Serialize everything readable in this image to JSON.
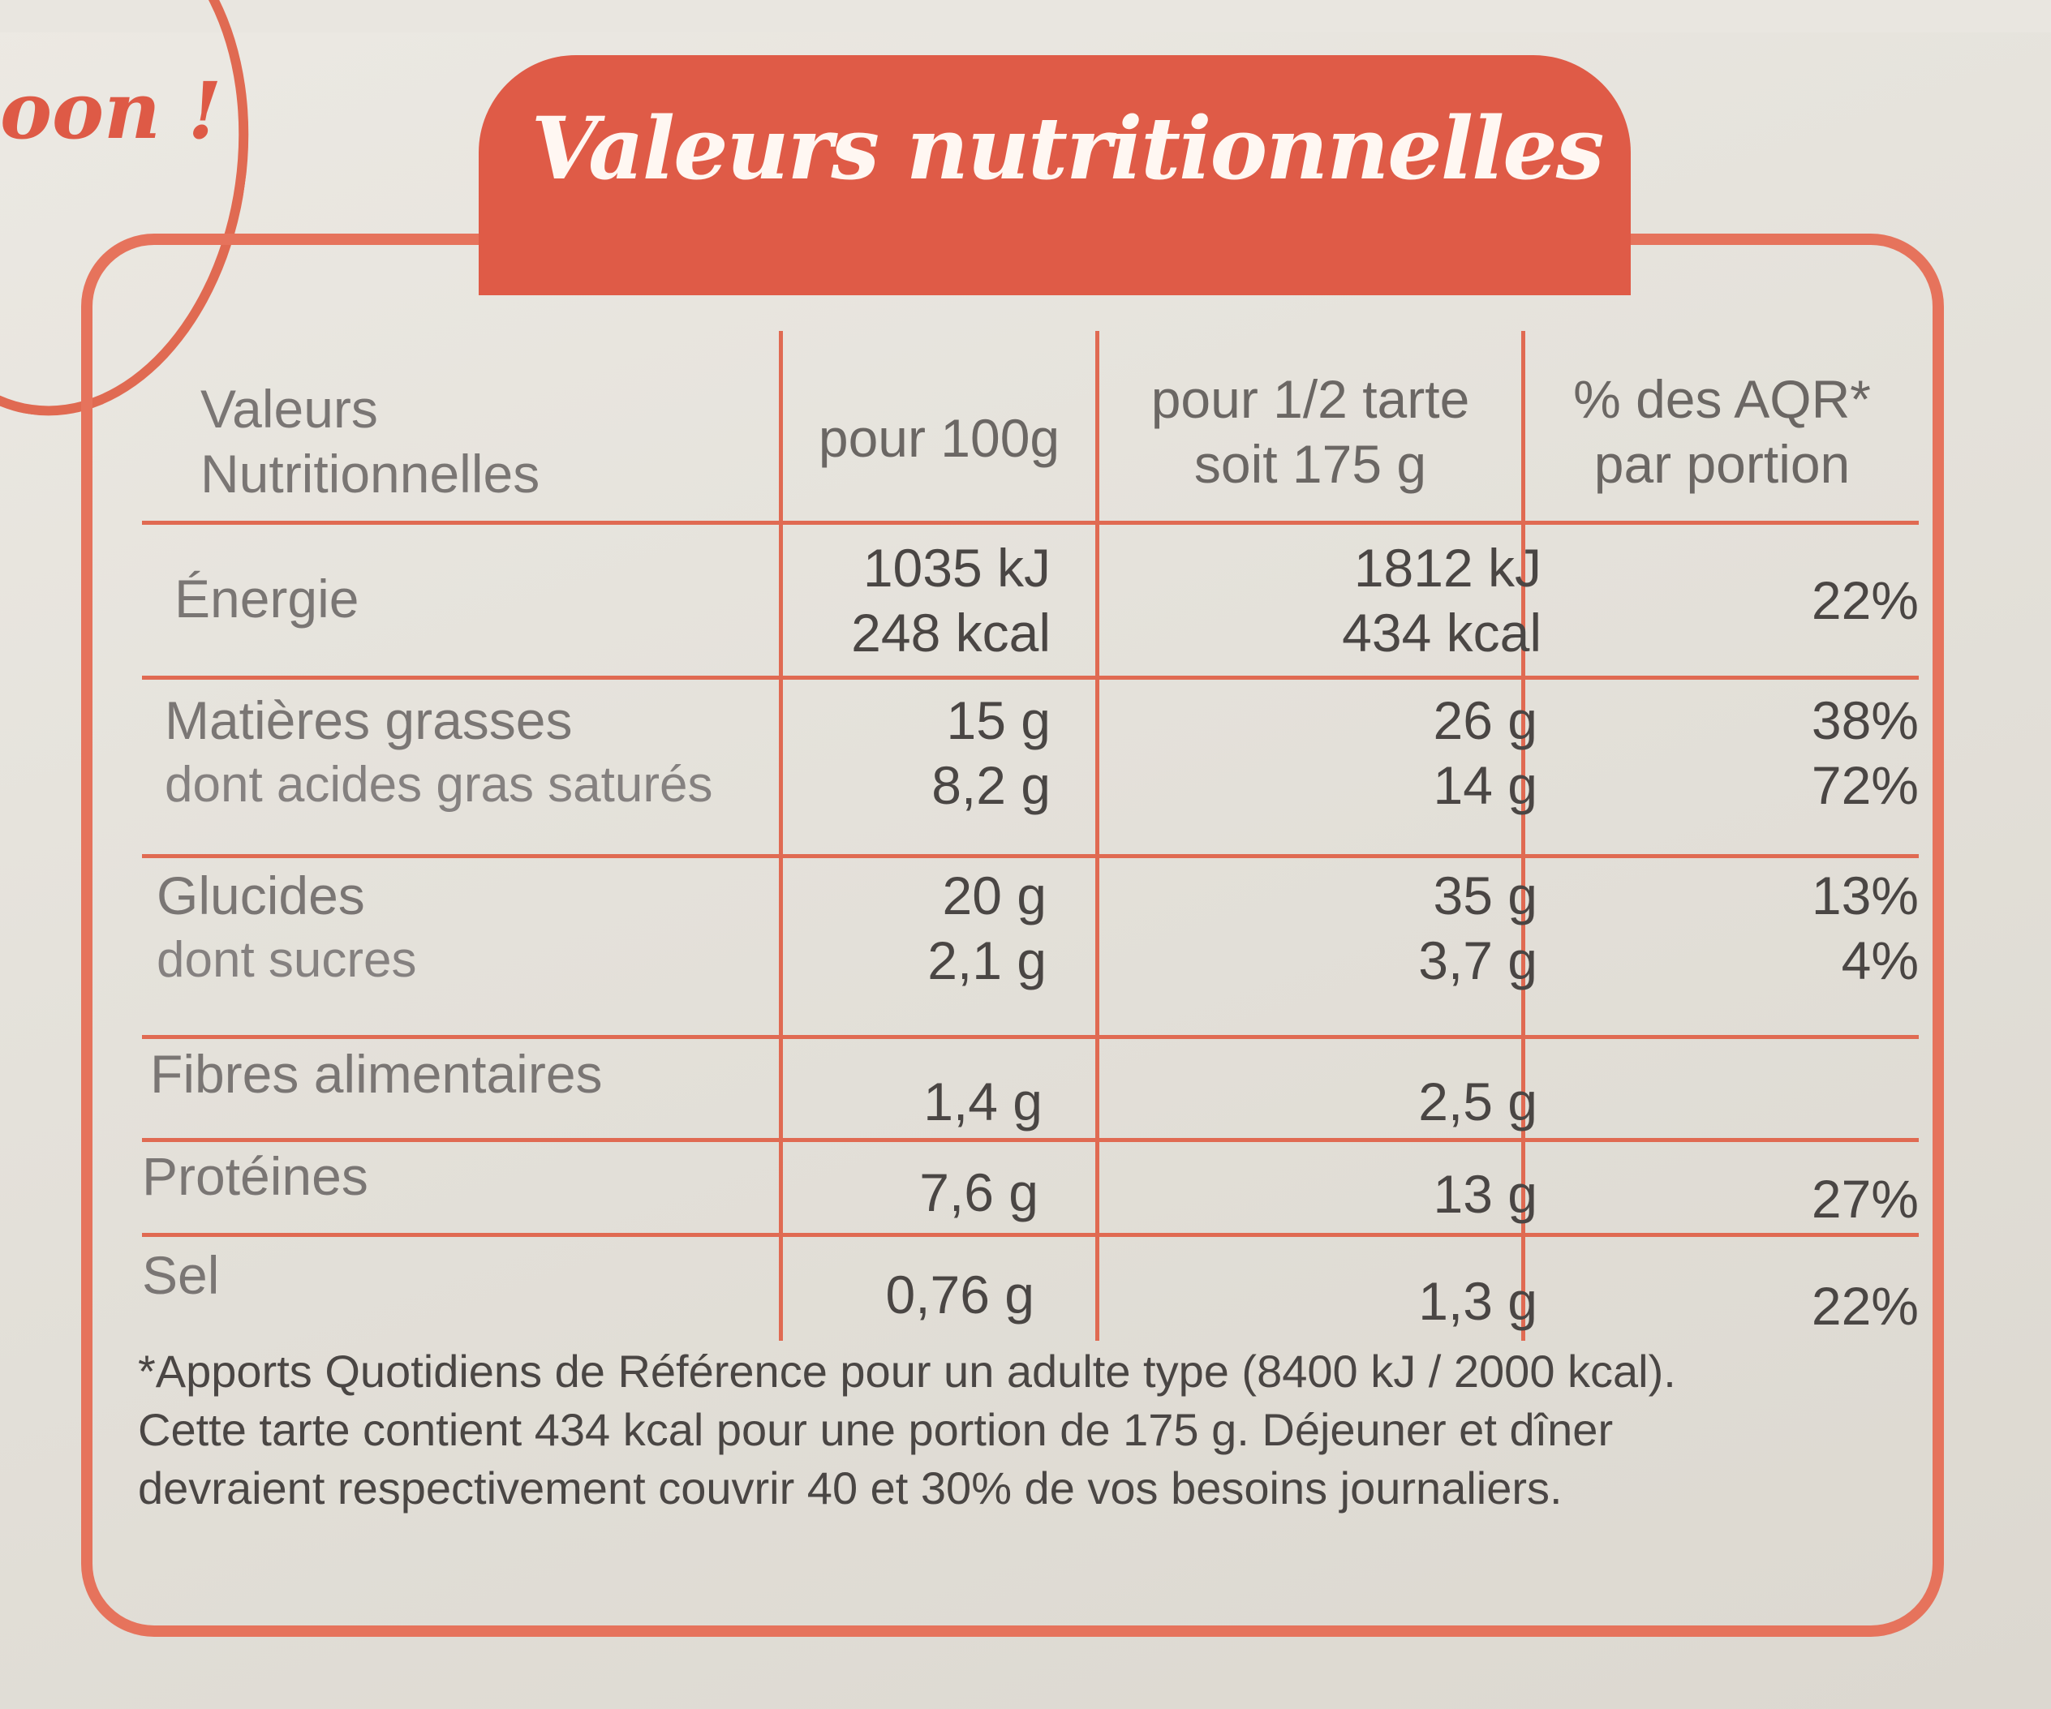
{
  "slogan": "oon !",
  "title": "Valeurs nutritionnelles",
  "header": {
    "col1_l1": "Valeurs",
    "col1_l2": "Nutritionnelles",
    "col2": "pour 100g",
    "col3_l1": "pour 1/2 tarte",
    "col3_l2": "soit 175 g",
    "col4_l1": "% des AQR*",
    "col4_l2": "par portion"
  },
  "rows": [
    {
      "l1": "Énergie",
      "l2": "",
      "a1": "1035 kJ",
      "a2": "248 kcal",
      "b1": "1812 kJ",
      "b2": "434 kcal",
      "c1": "22%",
      "c2": ""
    },
    {
      "l1": "Matières grasses",
      "l2": "dont acides gras saturés",
      "a1": "15 g",
      "a2": "8,2 g",
      "b1": "26 g",
      "b2": "14 g",
      "c1": "38%",
      "c2": "72%"
    },
    {
      "l1": "Glucides",
      "l2": "dont sucres",
      "a1": "20 g",
      "a2": "2,1 g",
      "b1": "35 g",
      "b2": "3,7 g",
      "c1": "13%",
      "c2": "4%"
    },
    {
      "l1": "Fibres alimentaires",
      "l2": "",
      "a1": "1,4 g",
      "a2": "",
      "b1": "2,5 g",
      "b2": "",
      "c1": "",
      "c2": ""
    },
    {
      "l1": "Protéines",
      "l2": "",
      "a1": "7,6 g",
      "a2": "",
      "b1": "13 g",
      "b2": "",
      "c1": "27%",
      "c2": ""
    },
    {
      "l1": "Sel",
      "l2": "",
      "a1": "0,76 g",
      "a2": "",
      "b1": "1,3 g",
      "b2": "",
      "c1": "22%",
      "c2": ""
    }
  ],
  "footnote": {
    "line1": "*Apports Quotidiens de Référence pour un adulte type (8400 kJ / 2000 kcal).",
    "line2": "Cette tarte contient 434 kcal pour une portion de 175 g. Déjeuner et dîner",
    "line3": "devraient respectivement couvrir 40 et 30% de vos besoins journaliers."
  },
  "colors": {
    "accent": "#df5b47",
    "text": "#4a4644"
  }
}
